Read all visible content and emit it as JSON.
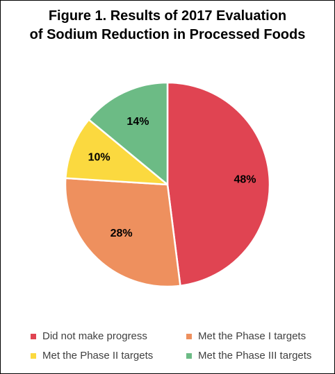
{
  "chart_data": {
    "type": "pie",
    "title": "Figure 1. Results of 2017 Evaluation of Sodium Reduction in Processed Foods",
    "title_lines": [
      "Figure 1. Results of 2017 Evaluation",
      "of Sodium Reduction in Processed Foods"
    ],
    "categories": [
      "Did not make progress",
      "Met the Phase I targets",
      "Met the Phase II targets",
      "Met the Phase III targets"
    ],
    "values": [
      48,
      28,
      10,
      14
    ],
    "data_labels": [
      "48%",
      "28%",
      "10%",
      "14%"
    ],
    "colors": [
      "#e04452",
      "#ee905e",
      "#fbd93f",
      "#6cbb85"
    ],
    "legend_position": "bottom"
  }
}
